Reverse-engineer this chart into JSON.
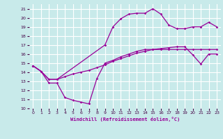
{
  "xlabel": "Windchill (Refroidissement éolien,°C)",
  "background_color": "#c8eaea",
  "grid_color": "#ffffff",
  "line_color": "#990099",
  "xlim": [
    -0.5,
    23.5
  ],
  "ylim": [
    10,
    21.5
  ],
  "xticks": [
    0,
    1,
    2,
    3,
    4,
    5,
    6,
    7,
    8,
    9,
    10,
    11,
    12,
    13,
    14,
    15,
    16,
    17,
    18,
    19,
    20,
    21,
    22,
    23
  ],
  "yticks": [
    10,
    11,
    12,
    13,
    14,
    15,
    16,
    17,
    18,
    19,
    20,
    21
  ],
  "curve1_x": [
    0,
    1,
    2,
    3,
    4,
    5,
    6,
    7,
    8,
    9,
    10,
    11,
    12,
    13,
    14,
    15,
    16,
    17,
    18,
    19,
    20,
    21,
    22,
    23
  ],
  "curve1_y": [
    14.7,
    14.1,
    12.8,
    12.8,
    11.2,
    10.9,
    10.7,
    10.5,
    13.3,
    15.0,
    15.3,
    15.7,
    16.0,
    16.3,
    16.5,
    16.5,
    16.5,
    16.5,
    16.5,
    16.5,
    16.5,
    16.5,
    16.5,
    16.5
  ],
  "curve2_x": [
    0,
    1,
    2,
    3,
    4,
    5,
    6,
    7,
    8,
    9,
    10,
    11,
    12,
    13,
    14,
    15,
    16,
    17,
    18,
    19,
    20,
    21,
    22,
    23
  ],
  "curve2_y": [
    14.7,
    14.1,
    13.2,
    13.2,
    13.5,
    13.8,
    14.0,
    14.2,
    14.5,
    14.8,
    15.2,
    15.5,
    15.8,
    16.1,
    16.3,
    16.5,
    16.6,
    16.7,
    16.8,
    16.8,
    15.9,
    14.9,
    16.0,
    16.0
  ],
  "curve3_x": [
    0,
    1,
    2,
    3,
    9,
    10,
    11,
    12,
    13,
    14,
    15,
    16,
    17,
    18,
    19,
    20,
    21,
    22,
    23
  ],
  "curve3_y": [
    14.7,
    14.1,
    13.2,
    13.2,
    17.0,
    19.0,
    19.9,
    20.4,
    20.5,
    20.5,
    21.0,
    20.4,
    19.2,
    18.8,
    18.8,
    19.0,
    19.0,
    19.5,
    19.0
  ]
}
